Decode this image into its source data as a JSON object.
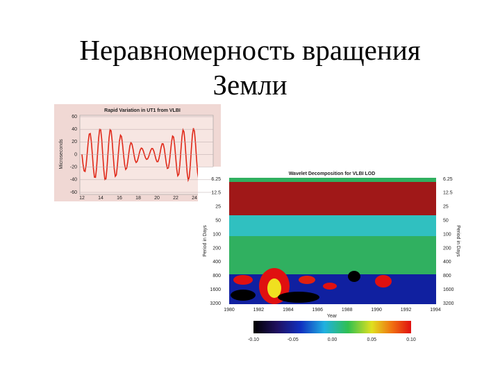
{
  "slide": {
    "title_lines": [
      "Неравномерность вращения",
      "Земли"
    ]
  },
  "figure_1": {
    "title": "Rapid Variation in UT1 from VLBI",
    "y_label": "Microseconds",
    "yticks": [
      "60",
      "40",
      "20",
      "0",
      "-20",
      "-40",
      "-60"
    ],
    "xticks": [
      "12",
      "14",
      "16",
      "18",
      "20",
      "22",
      "24"
    ]
  },
  "figure_2": {
    "title": "Wavelet Decomposition for VLBI LOD",
    "y_label": "Period in Days",
    "y2_label": "Period in Days",
    "x_label": "Year",
    "yticks": [
      "6.25",
      "12.5",
      "25",
      "50",
      "100",
      "200",
      "400",
      "800",
      "1600",
      "3200"
    ],
    "xticks": [
      "1980",
      "1982",
      "1984",
      "1986",
      "1988",
      "1990",
      "1992",
      "1994"
    ],
    "colorbar_ticks": [
      "-0.10",
      "-0.05",
      "0.00",
      "0.05",
      "0.10"
    ]
  }
}
